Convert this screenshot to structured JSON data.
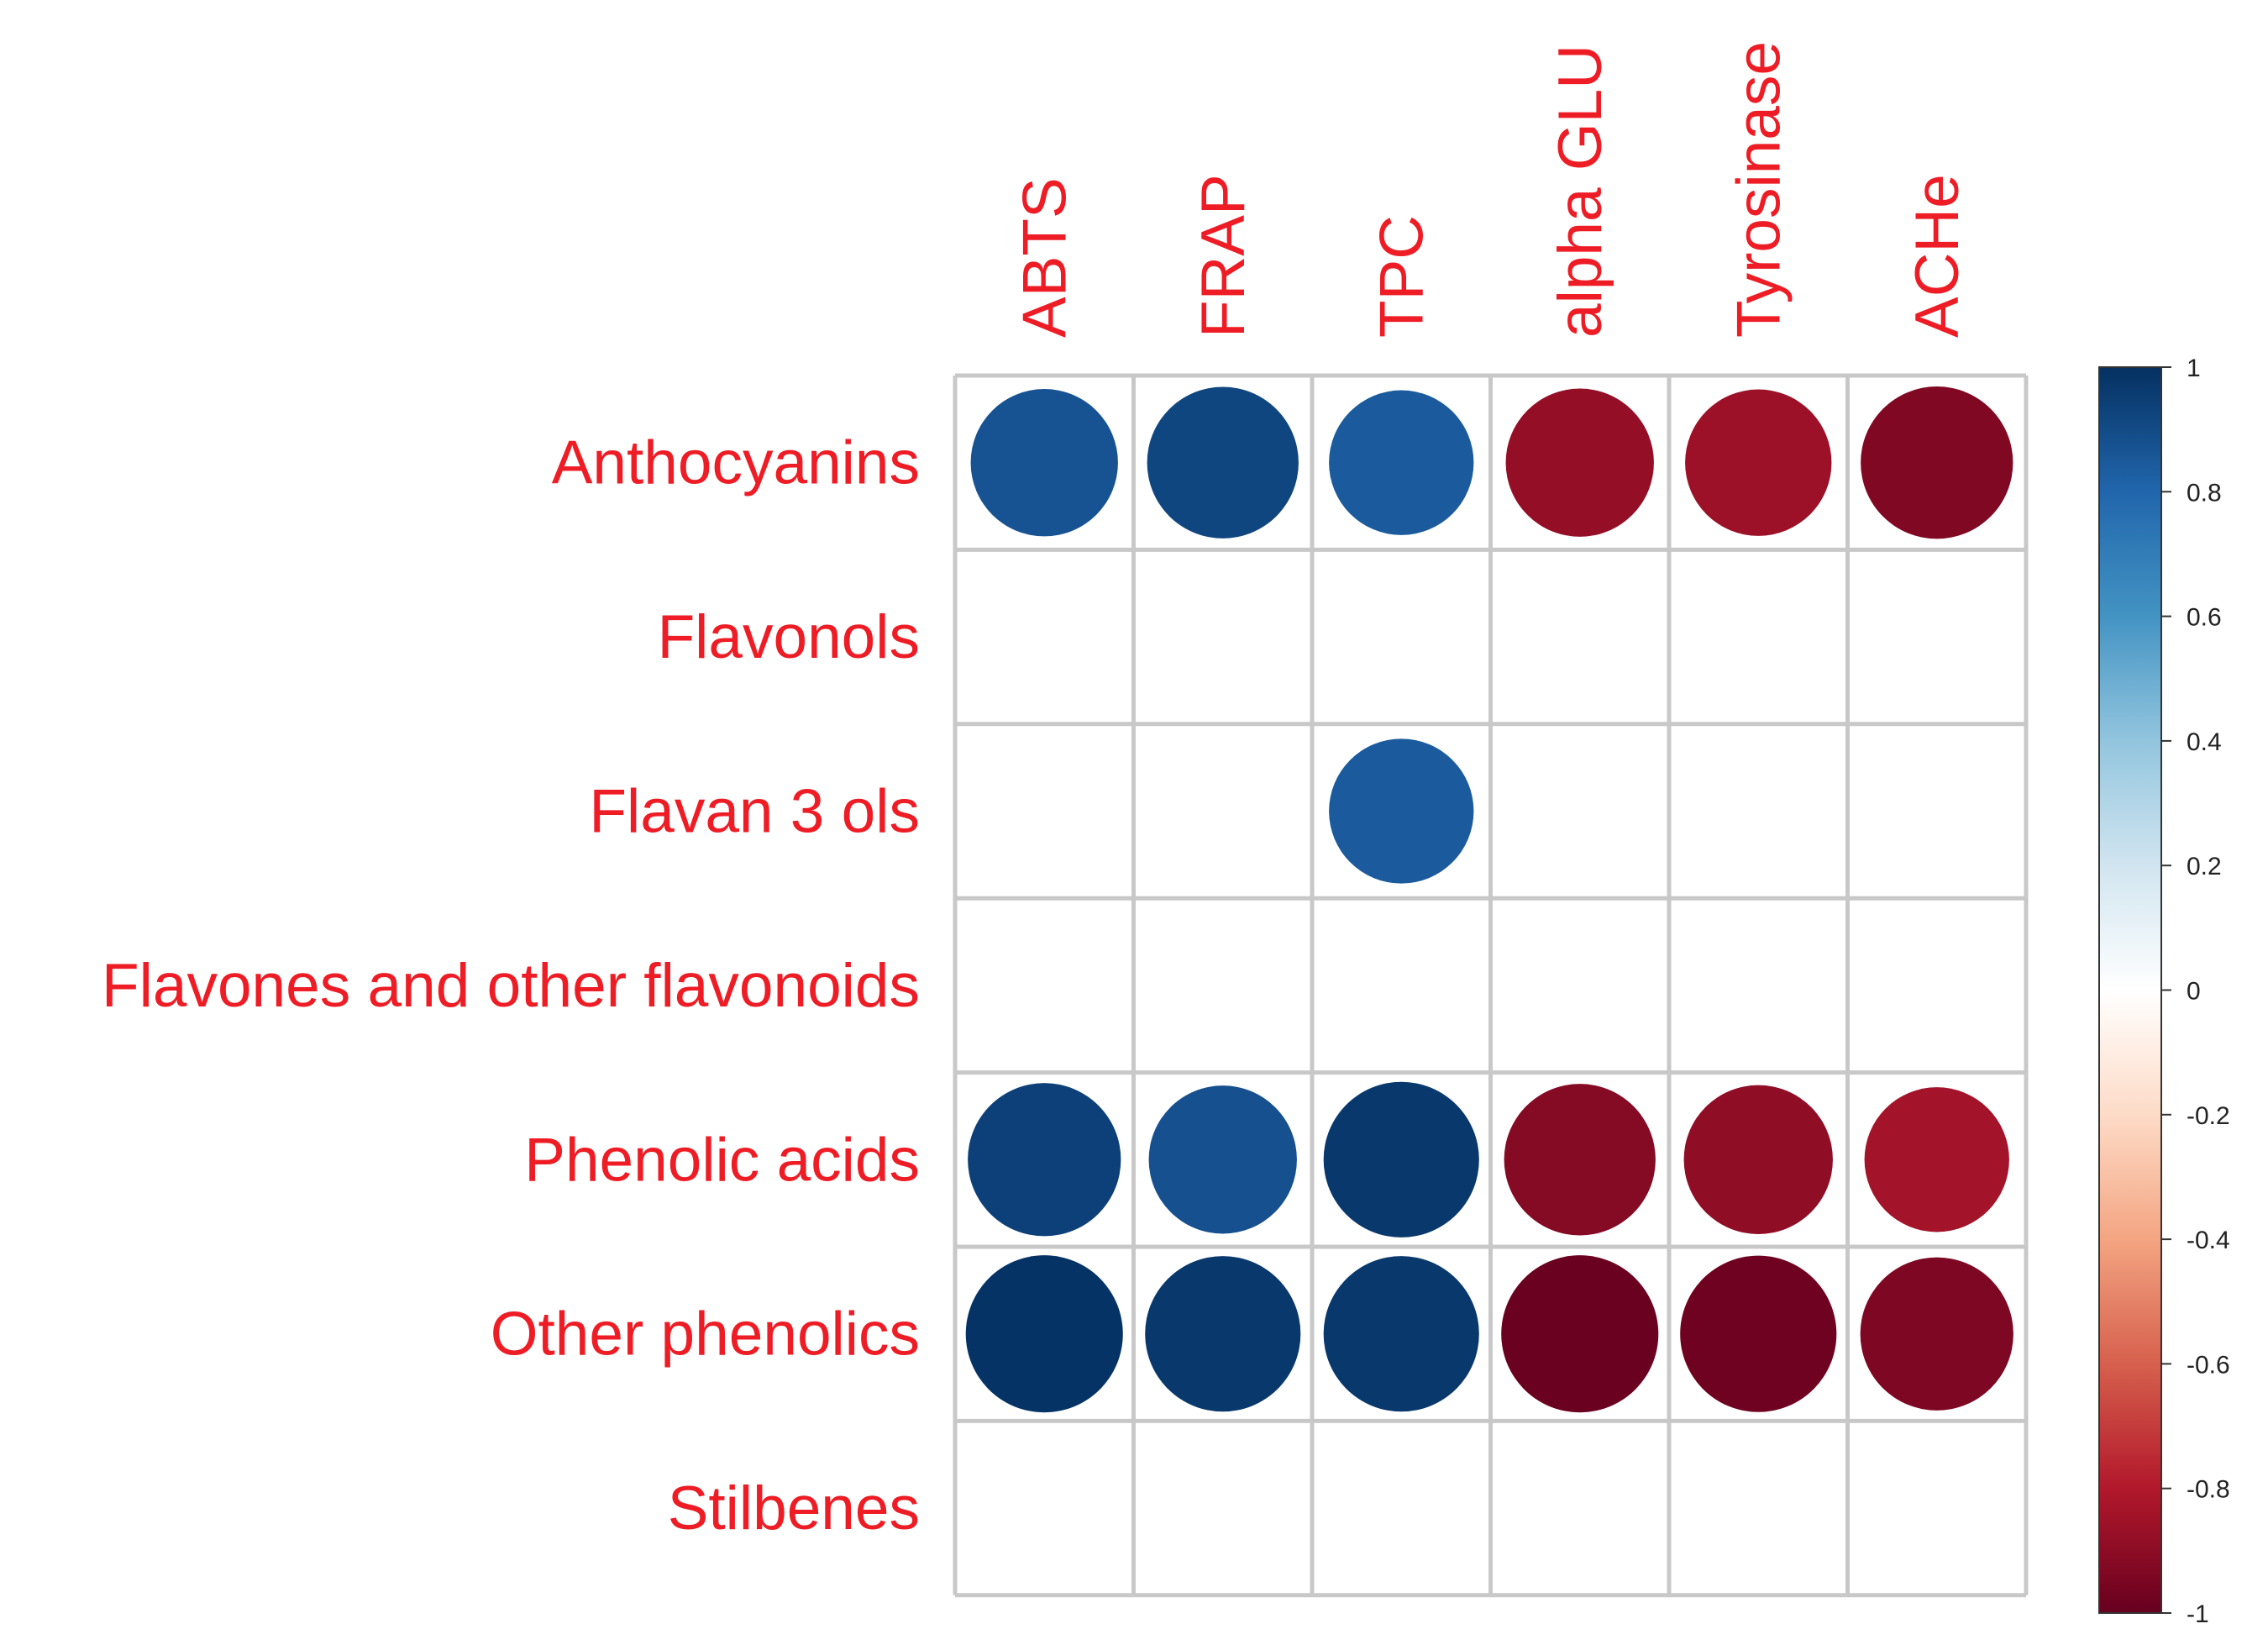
{
  "chart_data": {
    "type": "heatmap",
    "style": "corrplot-circle",
    "rows": [
      "Anthocyanins",
      "Flavonols",
      "Flavan 3 ols",
      "Flavones and other flavonoids",
      "Phenolic acids",
      "Other phenolics",
      "Stilbenes"
    ],
    "columns": [
      "ABTS",
      "FRAP",
      "TPC",
      "alpha GLU",
      "Tyrosinase",
      "ACHe"
    ],
    "values": [
      [
        0.87,
        0.92,
        0.84,
        -0.88,
        -0.86,
        -0.93
      ],
      [
        null,
        null,
        null,
        null,
        null,
        null
      ],
      [
        null,
        null,
        0.84,
        null,
        null,
        null
      ],
      [
        null,
        null,
        null,
        null,
        null,
        null
      ],
      [
        0.94,
        0.88,
        0.97,
        -0.92,
        -0.89,
        -0.84
      ],
      [
        0.99,
        0.97,
        0.97,
        -0.99,
        -0.98,
        -0.94
      ],
      [
        null,
        null,
        null,
        null,
        null,
        null
      ]
    ],
    "colorbar": {
      "range": [
        -1,
        1
      ],
      "ticks": [
        "1",
        "0.8",
        "0.6",
        "0.4",
        "0.2",
        "0",
        "-0.2",
        "-0.4",
        "-0.6",
        "-0.8",
        "-1"
      ]
    },
    "colors": {
      "scale": [
        "#67001F",
        "#B2182B",
        "#D6604D",
        "#F4A582",
        "#FDDBC7",
        "#FFFFFF",
        "#D1E5F0",
        "#92C5DE",
        "#4393C3",
        "#2166AC",
        "#053061"
      ],
      "label": "#EE1C25",
      "grid": "#C8C8C8"
    }
  }
}
